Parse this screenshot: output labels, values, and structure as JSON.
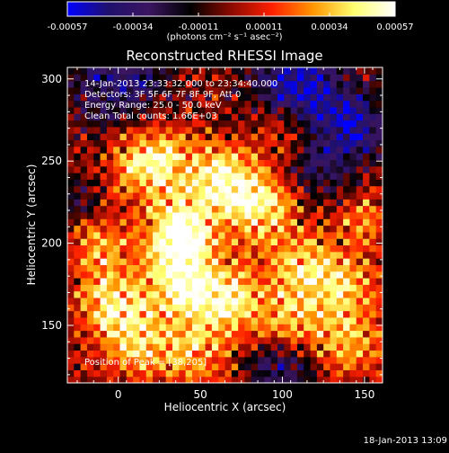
{
  "chart_data": {
    "type": "heatmap",
    "title": "Reconstructed RHESSI Image",
    "xlabel": "Heliocentric X (arcsec)",
    "ylabel": "Heliocentric Y (arcsec)",
    "xlim": [
      -31,
      161
    ],
    "ylim": [
      115,
      307
    ],
    "xticks": [
      0,
      50,
      100,
      150
    ],
    "yticks": [
      150,
      200,
      250,
      300
    ],
    "colorbar": {
      "range": [
        -0.00057,
        0.00057
      ],
      "tick_labels": [
        "-0.00057",
        "-0.00034",
        "-0.00011",
        "0.00011",
        "0.00034",
        "0.00057"
      ],
      "unit_label": "(photons cm⁻² s⁻¹ asec⁻²)",
      "colormap": [
        "#0000ff",
        "#20106e",
        "#3b1560",
        "#000000",
        "#8c0a00",
        "#ff2000",
        "#ff9600",
        "#ffff70",
        "#ffffff"
      ]
    },
    "annotations": {
      "time_range": "14-Jan-2013 23:33:32.000 to 23:34:40.000",
      "detectors": "Detectors: 3F 5F 6F 7F 8F 9F, Att 0",
      "energy_range": "Energy Range: 25.0 - 50.0 keV",
      "clean_counts": "Clean     Total counts: 1.66E+03",
      "peak_position": "Position of Peak = [38,205]"
    },
    "peak": {
      "x": 38,
      "y": 205
    },
    "timestamp": "18-Jan-2013 13:09"
  }
}
